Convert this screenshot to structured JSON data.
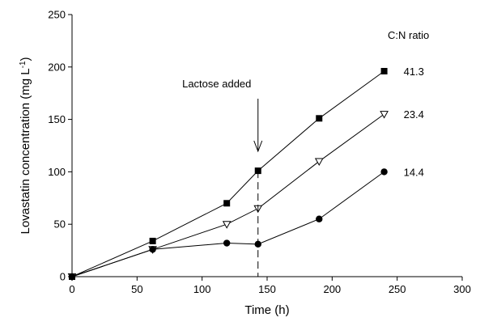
{
  "chart_data": {
    "type": "line",
    "xlabel": "Time (h)",
    "ylabel_text": "Lovastatin concentration (mg L",
    "ylabel_sup": "-1",
    "ylabel_close": ")",
    "xlim": [
      0,
      300
    ],
    "ylim": [
      0,
      250
    ],
    "xticks": [
      0,
      50,
      100,
      150,
      200,
      250,
      300
    ],
    "yticks": [
      0,
      50,
      100,
      150,
      200,
      250
    ],
    "grid": false,
    "legend_title": "C:N ratio",
    "series": [
      {
        "name": "41.3",
        "marker": "filled-square",
        "x": [
          0,
          62,
          119,
          143,
          190,
          240
        ],
        "y": [
          0,
          34,
          70,
          101,
          151,
          196
        ]
      },
      {
        "name": "23.4",
        "marker": "open-triangle-down",
        "x": [
          0,
          62,
          119,
          143,
          190,
          240
        ],
        "y": [
          0,
          26,
          50,
          65,
          110,
          155
        ]
      },
      {
        "name": "14.4",
        "marker": "filled-circle",
        "x": [
          0,
          62,
          119,
          143,
          190,
          240
        ],
        "y": [
          0,
          26,
          32,
          31,
          55,
          100
        ]
      }
    ],
    "annotation": {
      "text": "Lactose added",
      "x": 143
    }
  }
}
